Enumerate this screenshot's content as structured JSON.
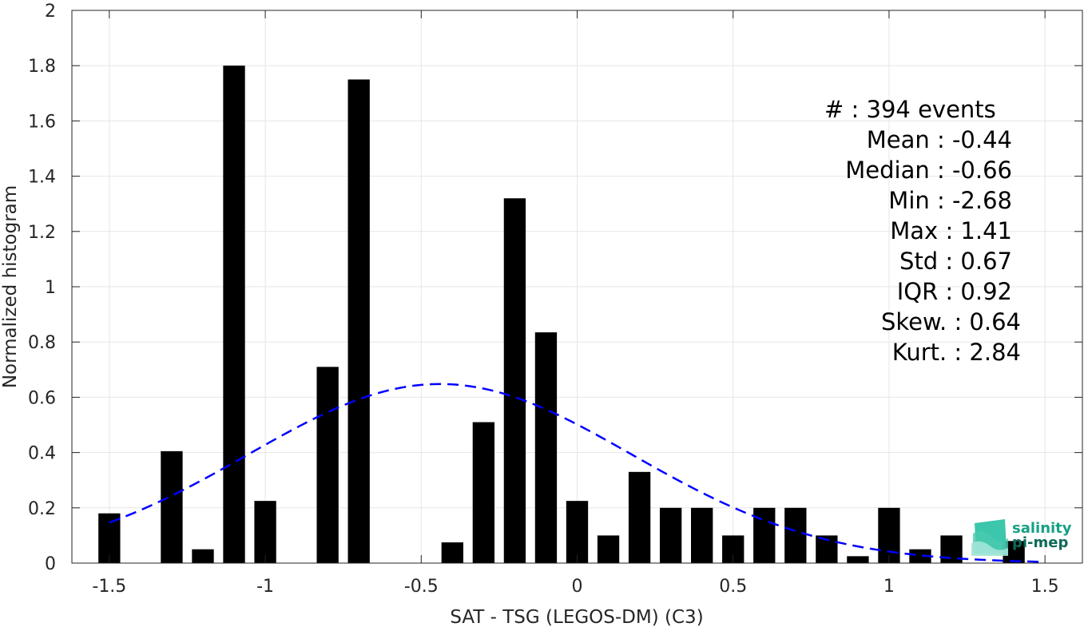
{
  "chart_data": {
    "type": "bar",
    "xlabel": "SAT - TSG (LEGOS-DM) (C3)",
    "ylabel": "Normalized histogram",
    "xlim": [
      -1.62,
      1.62
    ],
    "ylim": [
      0,
      2
    ],
    "xticks": [
      -1.5,
      -1,
      -0.5,
      0,
      0.5,
      1,
      1.5
    ],
    "xtick_labels": [
      "-1.5",
      "-1",
      "-0.5",
      "0",
      "0.5",
      "1",
      "1.5"
    ],
    "yticks": [
      0,
      0.2,
      0.4,
      0.6,
      0.8,
      1,
      1.2,
      1.4,
      1.6,
      1.8,
      2
    ],
    "ytick_labels": [
      "0",
      "0.2",
      "0.4",
      "0.6",
      "0.8",
      "1",
      "1.2",
      "1.4",
      "1.6",
      "1.8",
      "2"
    ],
    "grid": true,
    "bar_width": 0.07,
    "bar_color": "#000000",
    "bars": [
      {
        "x": -1.5,
        "value": 0.18
      },
      {
        "x": -1.3,
        "value": 0.405
      },
      {
        "x": -1.2,
        "value": 0.05
      },
      {
        "x": -1.1,
        "value": 1.8
      },
      {
        "x": -1.0,
        "value": 0.225
      },
      {
        "x": -0.8,
        "value": 0.71
      },
      {
        "x": -0.7,
        "value": 1.75
      },
      {
        "x": -0.4,
        "value": 0.075
      },
      {
        "x": -0.3,
        "value": 0.51
      },
      {
        "x": -0.2,
        "value": 1.32
      },
      {
        "x": -0.1,
        "value": 0.835
      },
      {
        "x": 0.0,
        "value": 0.225
      },
      {
        "x": 0.1,
        "value": 0.1
      },
      {
        "x": 0.2,
        "value": 0.33
      },
      {
        "x": 0.3,
        "value": 0.2
      },
      {
        "x": 0.4,
        "value": 0.2
      },
      {
        "x": 0.5,
        "value": 0.1
      },
      {
        "x": 0.6,
        "value": 0.2
      },
      {
        "x": 0.7,
        "value": 0.2
      },
      {
        "x": 0.8,
        "value": 0.1
      },
      {
        "x": 0.9,
        "value": 0.025
      },
      {
        "x": 1.0,
        "value": 0.2
      },
      {
        "x": 1.1,
        "value": 0.05
      },
      {
        "x": 1.2,
        "value": 0.1
      },
      {
        "x": 1.4,
        "value": 0.08
      }
    ],
    "fit_curve": {
      "style": "dashed",
      "color": "#0000ff",
      "mean": -0.44,
      "std": 0.615,
      "peak": 0.648,
      "x_range": [
        -1.5,
        1.5
      ]
    },
    "stats": [
      "#  : 394 events",
      "Mean : -0.44",
      "Median : -0.66",
      "Min : -2.68",
      "Max : 1.41",
      "Std : 0.67",
      "IQR : 0.92",
      "Skew. : 0.64",
      "Kurt. : 2.84"
    ]
  },
  "logo": {
    "line1": "salinity",
    "line2": "pi-mep",
    "color1": "#16a085",
    "color2": "#0b6b58"
  }
}
